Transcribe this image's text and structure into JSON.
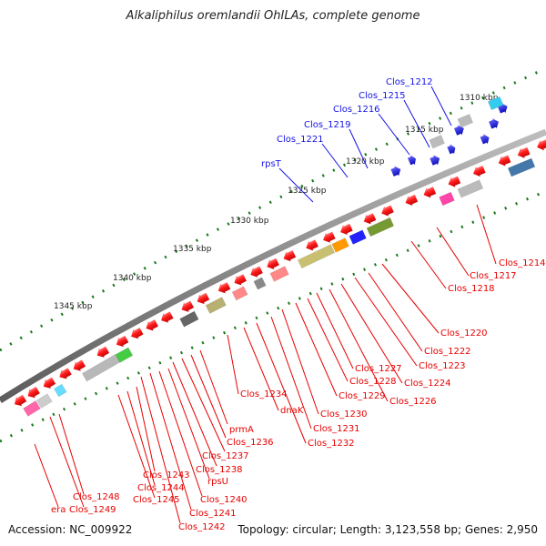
{
  "title": "Alkaliphilus oremlandii OhILAs, complete genome",
  "footer": {
    "accession": "Accession: NC_009922",
    "summary": "Topology: circular; Length: 3,123,558 bp; Genes: 2,950"
  },
  "ruler_labels": [
    "1310 kbp",
    "1315 kbp",
    "1320 kbp",
    "1325 kbp",
    "1330 kbp",
    "1335 kbp",
    "1340 kbp",
    "1345 kbp"
  ],
  "blue_labels": [
    "Clos_1212",
    "Clos_1215",
    "Clos_1216",
    "Clos_1219",
    "Clos_1221",
    "rpsT"
  ],
  "red_labels_right": [
    "Clos_1214",
    "Clos_1217",
    "Clos_1218",
    "Clos_1220",
    "Clos_1222",
    "Clos_1223",
    "Clos_1224",
    "Clos_1226",
    "Clos_1227",
    "Clos_1228",
    "Clos_1229",
    "Clos_1230",
    "Clos_1231",
    "Clos_1232",
    "dnaK",
    "Clos_1234"
  ],
  "red_labels_left": [
    "prmA",
    "Clos_1236",
    "Clos_1237",
    "Clos_1238",
    "rpsU",
    "Clos_1240",
    "Clos_1241",
    "Clos_1242",
    "Clos_1243",
    "Clos_1244",
    "Clos_1245",
    "Clos_1248",
    "Clos_1249",
    "era"
  ],
  "colors": {
    "forward": "#1414e6",
    "reverse": "#e60000",
    "backbone": "#808080",
    "ruler": "#1a7a1a"
  }
}
